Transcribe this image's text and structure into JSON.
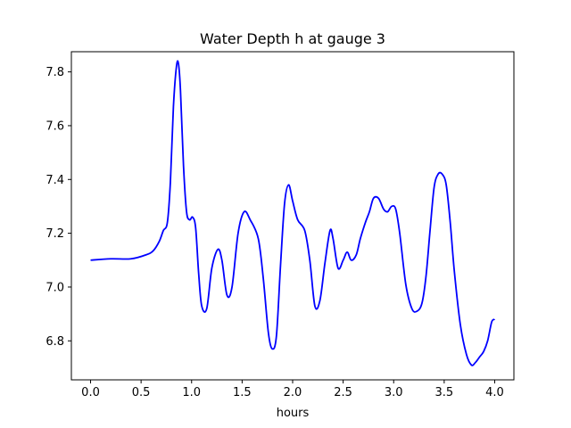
{
  "chart_data": {
    "type": "line",
    "title": "Water Depth h at gauge 3",
    "xlabel": "hours",
    "ylabel": "",
    "xlim": [
      -0.19,
      4.19
    ],
    "ylim": [
      6.655,
      7.875
    ],
    "xticks": [
      0.0,
      0.5,
      1.0,
      1.5,
      2.0,
      2.5,
      3.0,
      3.5,
      4.0
    ],
    "xtick_labels": [
      "0.0",
      "0.5",
      "1.0",
      "1.5",
      "2.0",
      "2.5",
      "3.0",
      "3.5",
      "4.0"
    ],
    "yticks": [
      6.8,
      7.0,
      7.2,
      7.4,
      7.6,
      7.8
    ],
    "ytick_labels": [
      "6.8",
      "7.0",
      "7.2",
      "7.4",
      "7.6",
      "7.8"
    ],
    "grid": false,
    "series": [
      {
        "color": "#0000ff",
        "x": [
          0.0,
          0.2,
          0.4,
          0.55,
          0.62,
          0.68,
          0.72,
          0.76,
          0.79,
          0.82,
          0.85,
          0.87,
          0.89,
          0.92,
          0.95,
          0.98,
          1.01,
          1.04,
          1.07,
          1.1,
          1.15,
          1.2,
          1.26,
          1.3,
          1.35,
          1.4,
          1.46,
          1.52,
          1.58,
          1.66,
          1.71,
          1.76,
          1.8,
          1.84,
          1.88,
          1.92,
          1.96,
          2.0,
          2.05,
          2.12,
          2.17,
          2.22,
          2.27,
          2.32,
          2.37,
          2.4,
          2.45,
          2.5,
          2.54,
          2.58,
          2.63,
          2.67,
          2.72,
          2.76,
          2.8,
          2.85,
          2.9,
          2.94,
          2.98,
          3.02,
          3.06,
          3.12,
          3.18,
          3.23,
          3.28,
          3.32,
          3.36,
          3.4,
          3.44,
          3.48,
          3.52,
          3.56,
          3.6,
          3.66,
          3.72,
          3.77,
          3.81,
          3.85,
          3.89,
          3.93,
          3.97,
          4.0
        ],
        "y": [
          7.1,
          7.105,
          7.105,
          7.12,
          7.135,
          7.17,
          7.21,
          7.24,
          7.39,
          7.67,
          7.82,
          7.83,
          7.73,
          7.45,
          7.28,
          7.25,
          7.26,
          7.22,
          7.05,
          6.93,
          6.92,
          7.07,
          7.14,
          7.1,
          6.97,
          7.0,
          7.2,
          7.28,
          7.25,
          7.18,
          7.03,
          6.83,
          6.77,
          6.82,
          7.08,
          7.31,
          7.38,
          7.32,
          7.25,
          7.21,
          7.1,
          6.93,
          6.95,
          7.09,
          7.21,
          7.18,
          7.07,
          7.1,
          7.13,
          7.1,
          7.12,
          7.18,
          7.24,
          7.28,
          7.33,
          7.33,
          7.29,
          7.28,
          7.3,
          7.29,
          7.2,
          7.01,
          6.92,
          6.91,
          6.94,
          7.04,
          7.21,
          7.37,
          7.42,
          7.42,
          7.38,
          7.24,
          7.06,
          6.86,
          6.75,
          6.71,
          6.72,
          6.74,
          6.76,
          6.8,
          6.87,
          6.88
        ]
      }
    ]
  }
}
